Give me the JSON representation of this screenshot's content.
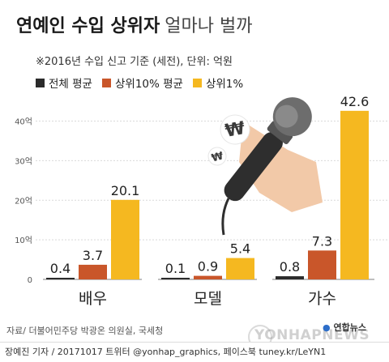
{
  "title": "연예인 수입 상위자",
  "title_suffix": "얼마나 벌까",
  "subtitle": "※2016년 수입 신고 기준 (세전), 단위: 억원",
  "source": "자료/ 더불어민주당 박광온 의원실, 국세청",
  "credit": "장예진 기자 / 20171017 트위터 @yonhap_graphics, 페이스북 tuney.kr/LeYN1",
  "logo_text": "연합뉴스",
  "watermark_text": "YONHAPNEWS",
  "colors": {
    "black": "#2b2b2b",
    "orange": "#c9562a",
    "yellow": "#f5b820",
    "grid": "#d9d9d9"
  },
  "chart_data": {
    "type": "bar",
    "categories": [
      "배우",
      "모델",
      "가수"
    ],
    "series": [
      {
        "name": "전체 평균",
        "values": [
          0.4,
          0.1,
          0.8
        ],
        "labels": [
          "0.4",
          "0.1",
          "0.8"
        ]
      },
      {
        "name": "상위10% 평균",
        "values": [
          3.7,
          0.9,
          7.3
        ],
        "labels": [
          "3.7",
          "0.9",
          "7.3"
        ]
      },
      {
        "name": "상위1%",
        "values": [
          20.1,
          5.4,
          42.6
        ],
        "labels": [
          "20.1",
          "5.4",
          "42.6"
        ]
      }
    ],
    "yticks": [
      0,
      10,
      20,
      30,
      40
    ],
    "ytick_labels": [
      "0",
      "10억",
      "20억",
      "30억",
      "40억"
    ],
    "ylim": [
      0,
      44
    ],
    "grid": true,
    "legend_position": "top-left"
  }
}
